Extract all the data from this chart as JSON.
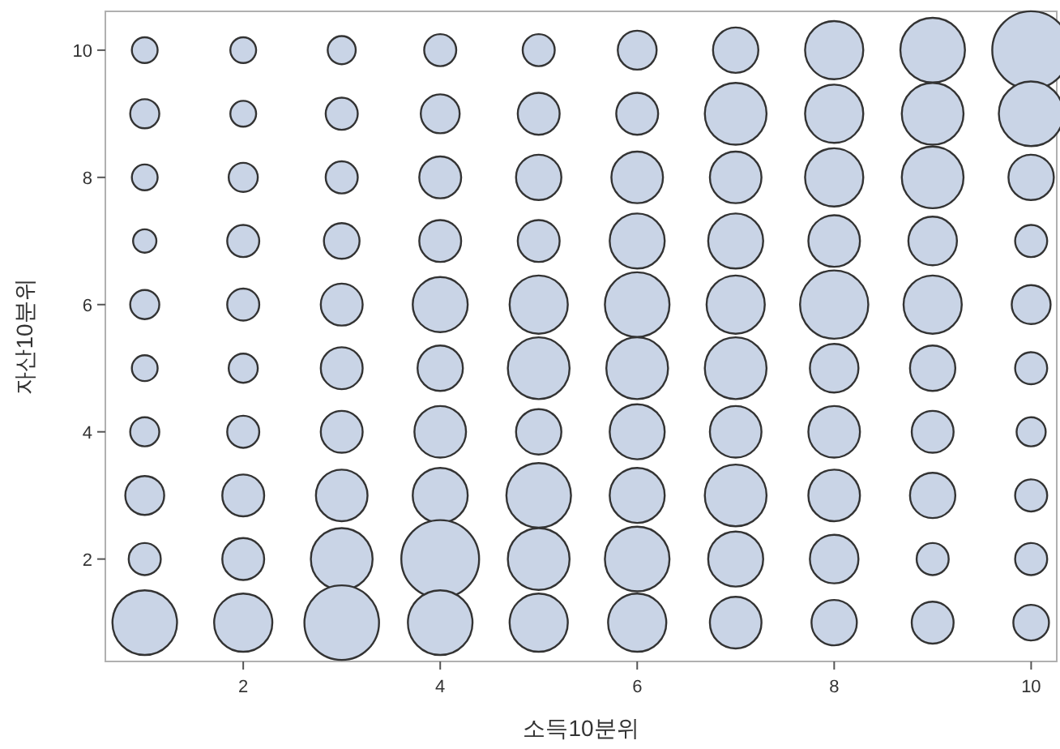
{
  "chart_data": {
    "type": "bubble",
    "xlabel": "소득10분위",
    "ylabel": "자산10분위",
    "xlim": [
      0.6,
      10.26
    ],
    "ylim": [
      0.39,
      10.61
    ],
    "xticks": [
      2,
      4,
      6,
      8,
      10
    ],
    "yticks": [
      2,
      4,
      6,
      8,
      10
    ],
    "x": [
      1,
      2,
      3,
      4,
      5,
      6,
      7,
      8,
      9,
      10,
      1,
      2,
      3,
      4,
      5,
      6,
      7,
      8,
      9,
      10,
      1,
      2,
      3,
      4,
      5,
      6,
      7,
      8,
      9,
      10,
      1,
      2,
      3,
      4,
      5,
      6,
      7,
      8,
      9,
      10,
      1,
      2,
      3,
      4,
      5,
      6,
      7,
      8,
      9,
      10,
      1,
      2,
      3,
      4,
      5,
      6,
      7,
      8,
      9,
      10,
      1,
      2,
      3,
      4,
      5,
      6,
      7,
      8,
      9,
      10,
      1,
      2,
      3,
      4,
      5,
      6,
      7,
      8,
      9,
      10,
      1,
      2,
      3,
      4,
      5,
      6,
      7,
      8,
      9,
      10,
      1,
      2,
      3,
      4,
      5,
      6,
      7,
      8,
      9,
      10
    ],
    "values": [
      10,
      10,
      10,
      10,
      10,
      10,
      10,
      10,
      10,
      10,
      9,
      9,
      9,
      9,
      9,
      9,
      9,
      9,
      9,
      9,
      8,
      8,
      8,
      8,
      8,
      8,
      8,
      8,
      8,
      8,
      7,
      7,
      7,
      7,
      7,
      7,
      7,
      7,
      7,
      7,
      6,
      6,
      6,
      6,
      6,
      6,
      6,
      6,
      6,
      6,
      5,
      5,
      5,
      5,
      5,
      5,
      5,
      5,
      5,
      5,
      4,
      4,
      4,
      4,
      4,
      4,
      4,
      4,
      4,
      4,
      3,
      3,
      3,
      3,
      3,
      3,
      3,
      3,
      3,
      3,
      2,
      2,
      2,
      2,
      2,
      2,
      2,
      2,
      2,
      2,
      1,
      1,
      1,
      1,
      1,
      1,
      1,
      1,
      1,
      1
    ],
    "sizes": [
      0.11,
      0.11,
      0.13,
      0.17,
      0.17,
      0.25,
      0.34,
      0.56,
      0.69,
      1,
      0.14,
      0.11,
      0.17,
      0.25,
      0.29,
      0.29,
      0.63,
      0.56,
      0.63,
      0.69,
      0.11,
      0.14,
      0.17,
      0.29,
      0.34,
      0.44,
      0.44,
      0.56,
      0.63,
      0.34,
      0.09,
      0.17,
      0.21,
      0.29,
      0.29,
      0.5,
      0.5,
      0.44,
      0.39,
      0.17,
      0.14,
      0.17,
      0.29,
      0.5,
      0.56,
      0.69,
      0.56,
      0.77,
      0.56,
      0.25,
      0.11,
      0.14,
      0.29,
      0.34,
      0.63,
      0.63,
      0.63,
      0.39,
      0.34,
      0.17,
      0.14,
      0.17,
      0.29,
      0.44,
      0.34,
      0.5,
      0.44,
      0.44,
      0.29,
      0.14,
      0.25,
      0.29,
      0.44,
      0.5,
      0.69,
      0.5,
      0.63,
      0.44,
      0.34,
      0.17,
      0.17,
      0.29,
      0.63,
      1,
      0.63,
      0.69,
      0.5,
      0.39,
      0.17,
      0.17,
      0.69,
      0.56,
      0.92,
      0.69,
      0.56,
      0.56,
      0.44,
      0.34,
      0.29,
      0.21
    ],
    "color": "#c9d4e6"
  }
}
